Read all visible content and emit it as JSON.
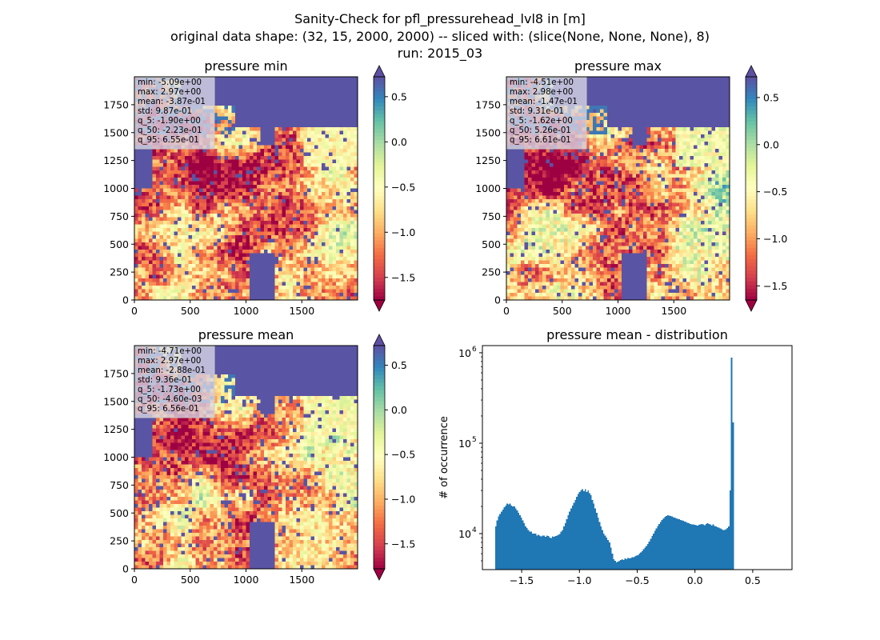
{
  "figure": {
    "title_lines": [
      "Sanity-Check for pfl_pressurehead_lvl8 in [m]",
      "original data shape: (32, 15, 2000, 2000) -- sliced with: (slice(None, None, None), 8)",
      "run: 2015_03"
    ]
  },
  "chart_data": [
    {
      "type": "heatmap",
      "title": "pressure min",
      "colormap": "Spectral",
      "colorbar": {
        "min": -1.75,
        "max": 0.72,
        "ticks": [
          0.5,
          0.0,
          -0.5,
          -1.0,
          -1.5
        ],
        "tick_labels": [
          "0.5",
          "0.0",
          "−0.5",
          "−1.0",
          "−1.5"
        ],
        "extend": "both"
      },
      "xlim": [
        0,
        2000
      ],
      "ylim": [
        0,
        2000
      ],
      "xticks": [
        "0",
        "500",
        "1000",
        "1500"
      ],
      "yticks": [
        "0",
        "250",
        "500",
        "750",
        "1000",
        "1250",
        "1500",
        "1750"
      ],
      "stats": [
        "min: -5.09e+00",
        "max: 2.97e+00",
        "mean: -3.87e-01",
        "std: 9.87e-01",
        "q_5: -1.90e+00",
        "q_50: -2.23e-01",
        "q_95: 6.55e-01"
      ]
    },
    {
      "type": "heatmap",
      "title": "pressure max",
      "colormap": "Spectral",
      "colorbar": {
        "min": -1.65,
        "max": 0.72,
        "ticks": [
          0.5,
          0.0,
          -0.5,
          -1.0,
          -1.5
        ],
        "tick_labels": [
          "0.5",
          "0.0",
          "−0.5",
          "−1.0",
          "−1.5"
        ],
        "extend": "both"
      },
      "xlim": [
        0,
        2000
      ],
      "ylim": [
        0,
        2000
      ],
      "xticks": [
        "0",
        "500",
        "1000",
        "1500"
      ],
      "yticks": [
        "0",
        "250",
        "500",
        "750",
        "1000",
        "1250",
        "1500",
        "1750"
      ],
      "stats": [
        "min: -4.51e+00",
        "max: 2.98e+00",
        "mean: -1.47e-01",
        "std: 9.31e-01",
        "q_5: -1.62e+00",
        "q_50: 5.26e-01",
        "q_95: 6.61e-01"
      ]
    },
    {
      "type": "heatmap",
      "title": "pressure mean",
      "colormap": "Spectral",
      "colorbar": {
        "min": -1.78,
        "max": 0.72,
        "ticks": [
          0.5,
          0.0,
          -0.5,
          -1.0,
          -1.5
        ],
        "tick_labels": [
          "0.5",
          "0.0",
          "−0.5",
          "−1.0",
          "−1.5"
        ],
        "extend": "both"
      },
      "xlim": [
        0,
        2000
      ],
      "ylim": [
        0,
        2000
      ],
      "xticks": [
        "0",
        "500",
        "1000",
        "1500"
      ],
      "yticks": [
        "0",
        "250",
        "500",
        "750",
        "1000",
        "1250",
        "1500",
        "1750"
      ],
      "stats": [
        "min: -4.71e+00",
        "max: 2.97e+00",
        "mean: -2.88e-01",
        "std: 9.36e-01",
        "q_5: -1.73e+00",
        "q_50: -4.60e-03",
        "q_95: 6.56e-01"
      ]
    },
    {
      "type": "bar",
      "title": "pressure mean - distribution",
      "ylabel": "# of occurrence",
      "xlabel": "",
      "yscale": "log",
      "color": "#1f77b4",
      "xlim": [
        -1.84,
        0.84
      ],
      "ylim": [
        4000,
        1200000
      ],
      "xticks": [
        -1.5,
        -1.0,
        -0.5,
        0.0,
        0.5
      ],
      "xtick_labels": [
        "−1.5",
        "−1.0",
        "−0.5",
        "0.0",
        "0.5"
      ],
      "yticks": [
        10000,
        100000,
        1000000
      ],
      "ytick_labels": [
        "10",
        "10",
        "10"
      ],
      "ytick_exponents": [
        "4",
        "5",
        "6"
      ],
      "bins_start": -1.73,
      "bin_width": 0.0123,
      "values": [
        12000,
        14000,
        15500,
        16500,
        17500,
        18500,
        19500,
        20500,
        21500,
        21000,
        21500,
        20500,
        20000,
        20000,
        19000,
        18000,
        17000,
        16000,
        15000,
        14000,
        13000,
        12000,
        11500,
        11000,
        10500,
        10500,
        10000,
        10000,
        10000,
        9500,
        9700,
        9500,
        9300,
        9500,
        9500,
        9200,
        9500,
        9400,
        9000,
        8900,
        9300,
        9200,
        9400,
        9500,
        9700,
        9900,
        10500,
        11000,
        12000,
        13000,
        14500,
        16000,
        17500,
        19000,
        20500,
        22000,
        23500,
        25500,
        27500,
        29000,
        30000,
        31000,
        29500,
        31000,
        29000,
        30000,
        28000,
        26500,
        23500,
        21500,
        19000,
        17000,
        15000,
        13500,
        12000,
        11000,
        10000,
        9500,
        9000,
        8500,
        8000,
        7000,
        6000,
        5200,
        5000,
        4800,
        4900,
        5000,
        5100,
        5200,
        5100,
        5300,
        5200,
        5400,
        5300,
        5400,
        5500,
        5500,
        5600,
        5700,
        5800,
        6000,
        6200,
        6400,
        6700,
        7000,
        7300,
        7700,
        8200,
        8800,
        9400,
        10000,
        10700,
        11400,
        12100,
        12800,
        13500,
        14200,
        14800,
        15300,
        15700,
        16000,
        15800,
        15600,
        15500,
        15200,
        15000,
        14800,
        14600,
        14400,
        14200,
        14000,
        13800,
        13600,
        13400,
        13200,
        13000,
        12800,
        12700,
        12600,
        12500,
        12400,
        12300,
        12500,
        12600,
        12800,
        12600,
        12400,
        12800,
        13000,
        12800,
        12600,
        12300,
        12700,
        12200,
        12000,
        11800,
        11600,
        11400,
        11200,
        11000,
        11000,
        11200,
        11500,
        12000,
        30000,
        880000,
        170000
      ]
    }
  ]
}
